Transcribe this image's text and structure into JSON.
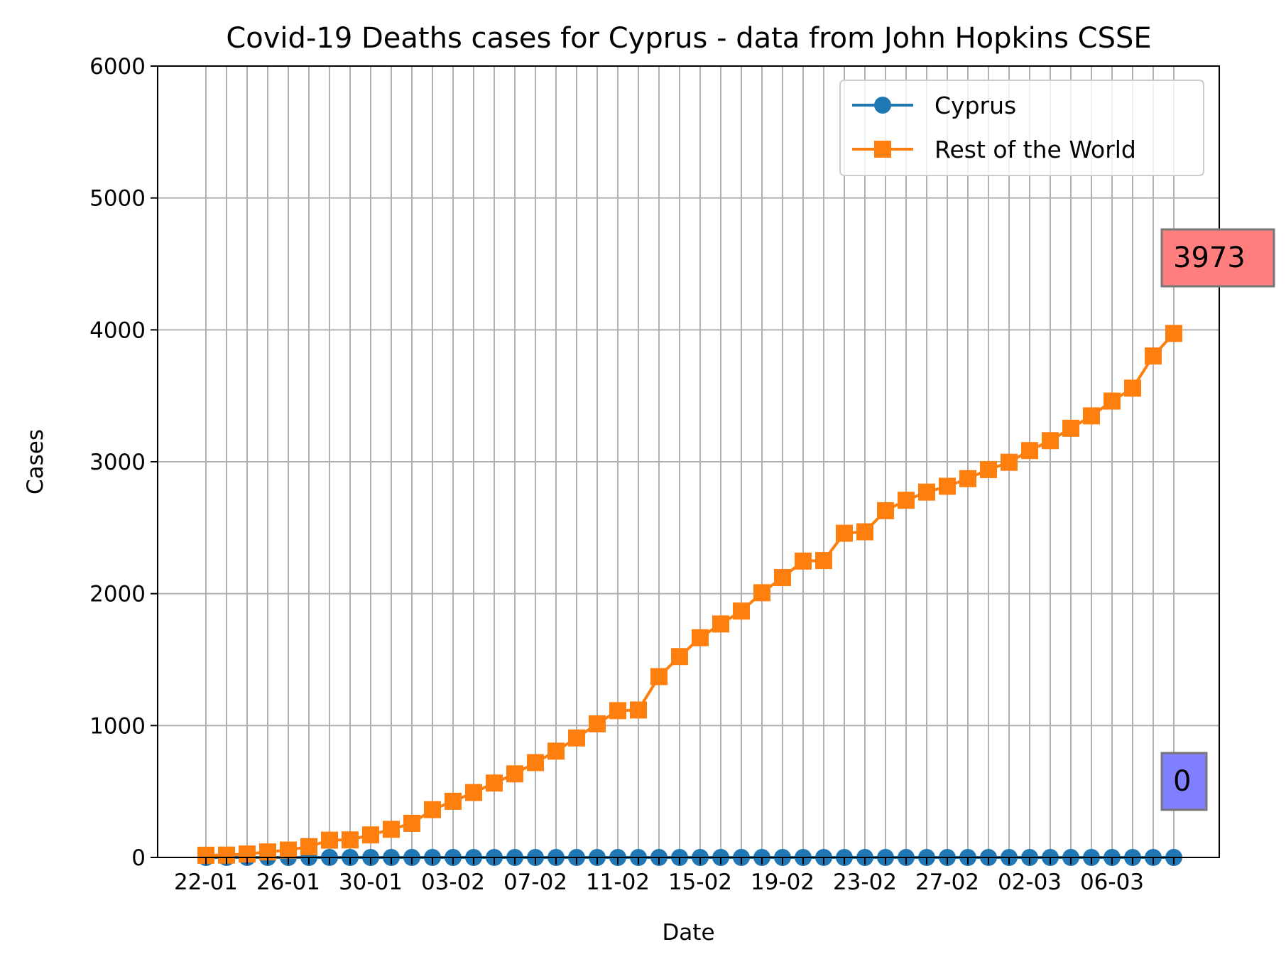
{
  "chart_data": {
    "type": "line",
    "title": "Covid-19 Deaths cases for Cyprus - data from John Hopkins CSSE",
    "xlabel": "Date",
    "ylabel": "Cases",
    "ylim": [
      0,
      6000
    ],
    "yticks": [
      0,
      1000,
      2000,
      3000,
      4000,
      5000,
      6000
    ],
    "grid": true,
    "legend_position": "upper right",
    "x": [
      "22-01",
      "23-01",
      "24-01",
      "25-01",
      "26-01",
      "27-01",
      "28-01",
      "29-01",
      "30-01",
      "31-01",
      "01-02",
      "02-02",
      "03-02",
      "04-02",
      "05-02",
      "06-02",
      "07-02",
      "08-02",
      "09-02",
      "10-02",
      "11-02",
      "12-02",
      "13-02",
      "14-02",
      "15-02",
      "16-02",
      "17-02",
      "18-02",
      "19-02",
      "20-02",
      "21-02",
      "22-02",
      "23-02",
      "24-02",
      "25-02",
      "26-02",
      "27-02",
      "28-02",
      "29-02",
      "01-03",
      "02-03",
      "03-03",
      "04-03",
      "05-03",
      "06-03",
      "07-03",
      "08-03",
      "09-03"
    ],
    "xticklabels": [
      "22-01",
      "26-01",
      "30-01",
      "03-02",
      "07-02",
      "11-02",
      "15-02",
      "19-02",
      "23-02",
      "27-02",
      "02-03",
      "06-03"
    ],
    "series": [
      {
        "name": "Cyprus",
        "color": "#1f77b4",
        "marker": "circle",
        "values": [
          0,
          0,
          0,
          0,
          0,
          0,
          0,
          0,
          0,
          0,
          0,
          0,
          0,
          0,
          0,
          0,
          0,
          0,
          0,
          0,
          0,
          0,
          0,
          0,
          0,
          0,
          0,
          0,
          0,
          0,
          0,
          0,
          0,
          0,
          0,
          0,
          0,
          0,
          0,
          0,
          0,
          0,
          0,
          0,
          0,
          0,
          0,
          0
        ]
      },
      {
        "name": "Rest of the World",
        "color": "#ff7f0e",
        "marker": "square",
        "values": [
          17,
          18,
          26,
          42,
          56,
          82,
          131,
          133,
          171,
          213,
          259,
          362,
          426,
          492,
          564,
          634,
          719,
          806,
          906,
          1013,
          1113,
          1118,
          1371,
          1523,
          1666,
          1770,
          1868,
          2007,
          2122,
          2247,
          2251,
          2458,
          2469,
          2629,
          2708,
          2770,
          2814,
          2872,
          2941,
          2996,
          3085,
          3160,
          3254,
          3348,
          3460,
          3558,
          3802,
          3973
        ]
      }
    ],
    "annotations": [
      {
        "text": "3973",
        "series": "Rest of the World",
        "box_color": "#ff7f7f"
      },
      {
        "text": "0",
        "series": "Cyprus",
        "box_color": "#7f7fff"
      }
    ]
  }
}
